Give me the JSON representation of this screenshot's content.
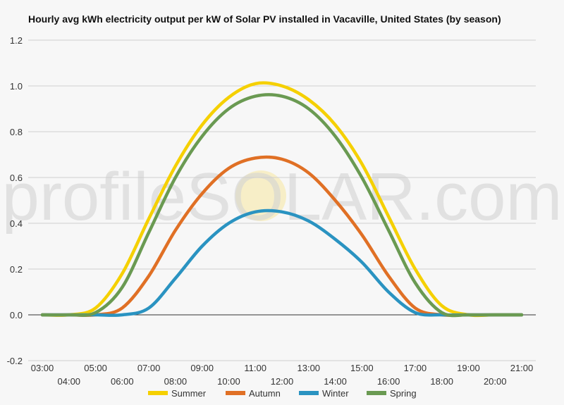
{
  "chart_data": {
    "type": "line",
    "title": "Hourly avg kWh electricity output per kW of Solar PV installed in Vacaville, United States (by season)",
    "xlabel": "",
    "ylabel": "",
    "ylim": [
      -0.2,
      1.2
    ],
    "yticks": [
      "-0.2",
      "0.0",
      "0.2",
      "0.4",
      "0.6",
      "0.8",
      "1.0",
      "1.2"
    ],
    "grid": true,
    "legend": "bottom",
    "watermark": "profileSOLAR.com",
    "x": [
      "03:00",
      "04:00",
      "05:00",
      "06:00",
      "07:00",
      "08:00",
      "09:00",
      "10:00",
      "11:00",
      "12:00",
      "13:00",
      "14:00",
      "15:00",
      "16:00",
      "17:00",
      "18:00",
      "19:00",
      "20:00",
      "21:00"
    ],
    "series": [
      {
        "name": "Summer",
        "color": "#f5d000",
        "values": [
          0,
          0,
          0.03,
          0.18,
          0.42,
          0.65,
          0.83,
          0.95,
          1.01,
          1.0,
          0.94,
          0.83,
          0.66,
          0.43,
          0.2,
          0.04,
          0,
          0,
          0
        ]
      },
      {
        "name": "Autumn",
        "color": "#e07025",
        "values": [
          0,
          0,
          0,
          0.03,
          0.17,
          0.37,
          0.53,
          0.64,
          0.685,
          0.68,
          0.62,
          0.5,
          0.35,
          0.17,
          0.03,
          0,
          0,
          0,
          0
        ]
      },
      {
        "name": "Winter",
        "color": "#2a93c1",
        "values": [
          0,
          0,
          0,
          0,
          0.03,
          0.16,
          0.3,
          0.4,
          0.45,
          0.45,
          0.41,
          0.33,
          0.23,
          0.1,
          0.01,
          0,
          0,
          0,
          0
        ]
      },
      {
        "name": "Spring",
        "color": "#6a9a52",
        "values": [
          0,
          0,
          0.01,
          0.12,
          0.36,
          0.6,
          0.78,
          0.9,
          0.955,
          0.955,
          0.9,
          0.78,
          0.6,
          0.37,
          0.14,
          0.01,
          0,
          0,
          0
        ]
      }
    ]
  }
}
